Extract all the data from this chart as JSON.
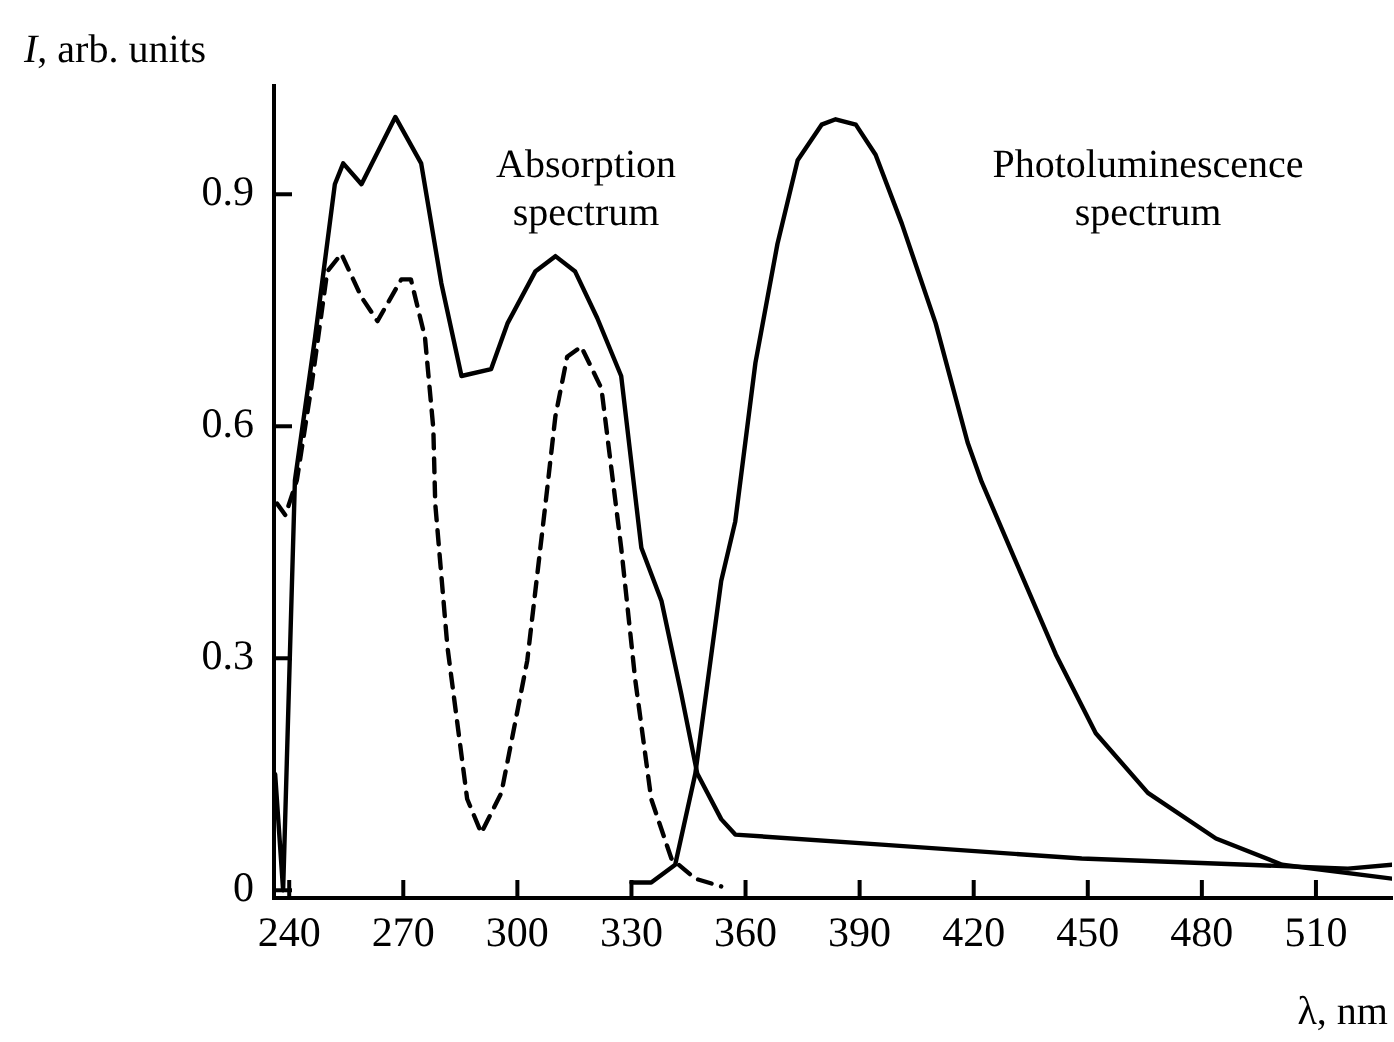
{
  "chart_data": {
    "type": "line",
    "xlabel": "λ, nm",
    "ylabel": "I, arb. units",
    "xlim": [
      236,
      530
    ],
    "xticks": [
      240,
      270,
      300,
      330,
      360,
      390,
      420,
      450,
      480,
      510
    ],
    "ylim": [
      -0.01,
      1.04
    ],
    "yticks": [
      0,
      0.3,
      0.6,
      0.9
    ],
    "grid": false,
    "legend": false,
    "marker": "none",
    "annotations": [
      "Absorption\nspectrum",
      "Photoluminescence\nspectrum"
    ],
    "series": [
      {
        "color": "#000000",
        "line_style": "solid",
        "x": [
          236.3,
          238.4,
          241.5,
          246.8,
          252,
          254.2,
          259,
          267.9,
          274.7,
          280,
          285.3,
          293.1,
          297.4,
          304.7,
          310,
          315.2,
          321,
          327.3,
          332.6,
          337.9,
          343.1,
          347.3,
          353.6,
          357.3,
          395.8,
          448.4,
          492,
          518.4,
          530
        ],
        "values": [
          0.15,
          0,
          0.53,
          0.715,
          0.913,
          0.94,
          0.913,
          1.0,
          0.94,
          0.785,
          0.665,
          0.674,
          0.733,
          0.8,
          0.82,
          0.8,
          0.74,
          0.665,
          0.443,
          0.374,
          0.254,
          0.151,
          0.092,
          0.072,
          0.059,
          0.041,
          0.033,
          0.028,
          0.033
        ]
      },
      {
        "color": "#000000",
        "line_style": "dashed",
        "x": [
          236.8,
          239,
          242,
          245.8,
          250,
          253.7,
          259,
          263.2,
          269.5,
          272,
          275.7,
          277.9,
          278.4,
          281.6,
          286.8,
          290.5,
          295.8,
          302.6,
          307.4,
          310,
          313.1,
          316.8,
          322.1,
          324.7,
          327.3,
          331,
          335.2,
          340.5,
          346.8,
          353.6
        ],
        "values": [
          0.5,
          0.485,
          0.53,
          0.65,
          0.8,
          0.823,
          0.767,
          0.736,
          0.79,
          0.79,
          0.715,
          0.597,
          0.5,
          0.315,
          0.118,
          0.074,
          0.126,
          0.297,
          0.5,
          0.613,
          0.69,
          0.703,
          0.649,
          0.546,
          0.443,
          0.272,
          0.118,
          0.041,
          0.015,
          0.005
        ]
      },
      {
        "color": "#000000",
        "line_style": "solid",
        "x": [
          330,
          335.2,
          341.5,
          346.8,
          353.6,
          357.3,
          362.6,
          368.4,
          373.7,
          380,
          383.7,
          389,
          394.2,
          401.1,
          410,
          418.4,
          422.1,
          431,
          441.6,
          452.1,
          465.8,
          483.7,
          501.1,
          530
        ],
        "values": [
          0.01,
          0.01,
          0.033,
          0.151,
          0.4,
          0.477,
          0.682,
          0.836,
          0.944,
          0.99,
          0.997,
          0.99,
          0.951,
          0.862,
          0.733,
          0.579,
          0.528,
          0.426,
          0.305,
          0.203,
          0.126,
          0.067,
          0.033,
          0.015
        ]
      }
    ]
  }
}
